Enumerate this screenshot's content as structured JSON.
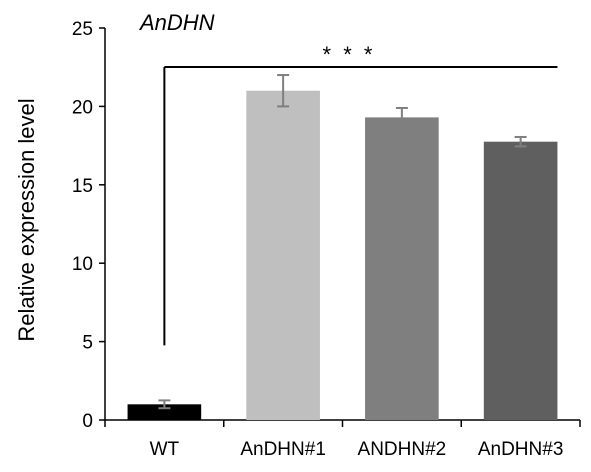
{
  "chart_data": {
    "type": "bar",
    "title": "AnDHN",
    "ylabel": "Relative expression level",
    "xlabel": "",
    "categories": [
      "WT",
      "AnDHN#1",
      "ANDHN#2",
      "AnDHN#3"
    ],
    "values": [
      1.0,
      21.0,
      19.3,
      17.75
    ],
    "errors": [
      0.25,
      1.0,
      0.6,
      0.3
    ],
    "colors": [
      "#000000",
      "#bfbfbf",
      "#7f7f7f",
      "#5f5f5f"
    ],
    "ylim": [
      0,
      25
    ],
    "yticks": [
      0,
      5,
      10,
      15,
      20,
      25
    ],
    "grid": false,
    "significance": "* * *"
  }
}
